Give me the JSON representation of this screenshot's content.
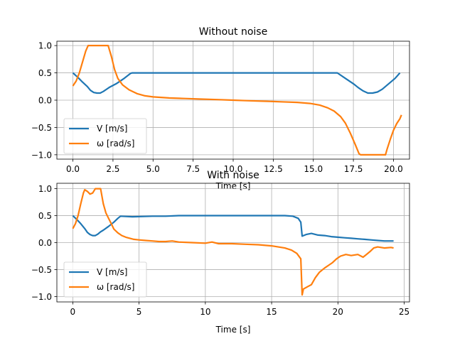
{
  "chart_data": [
    {
      "type": "line",
      "title": "Without noise",
      "xlabel": "Time [s]",
      "ylabel": "",
      "xlim": [
        -1.0,
        21.0
      ],
      "ylim": [
        -1.08,
        1.08
      ],
      "xticks": [
        0.0,
        2.5,
        5.0,
        7.5,
        10.0,
        12.5,
        15.0,
        17.5,
        20.0
      ],
      "xtick_labels": [
        "0.0",
        "2.5",
        "5.0",
        "7.5",
        "10.0",
        "12.5",
        "15.0",
        "17.5",
        "20.0"
      ],
      "yticks": [
        -1.0,
        -0.5,
        0.0,
        0.5,
        1.0
      ],
      "ytick_labels": [
        "−1.0",
        "−0.5",
        "0.0",
        "0.5",
        "1.0"
      ],
      "grid": true,
      "legend": "lower-left",
      "series": [
        {
          "name": "V [m/s]",
          "color": "#1f77b4",
          "points": [
            [
              0.0,
              0.5
            ],
            [
              0.3,
              0.42
            ],
            [
              0.6,
              0.33
            ],
            [
              0.9,
              0.25
            ],
            [
              1.1,
              0.18
            ],
            [
              1.3,
              0.14
            ],
            [
              1.5,
              0.13
            ],
            [
              1.7,
              0.13
            ],
            [
              1.9,
              0.16
            ],
            [
              2.1,
              0.2
            ],
            [
              2.3,
              0.24
            ],
            [
              2.7,
              0.3
            ],
            [
              3.2,
              0.4
            ],
            [
              3.6,
              0.49
            ],
            [
              3.7,
              0.5
            ],
            [
              16.5,
              0.5
            ],
            [
              17.0,
              0.4
            ],
            [
              17.5,
              0.3
            ],
            [
              17.8,
              0.23
            ],
            [
              18.1,
              0.17
            ],
            [
              18.4,
              0.13
            ],
            [
              18.7,
              0.13
            ],
            [
              19.0,
              0.15
            ],
            [
              19.3,
              0.2
            ],
            [
              19.7,
              0.3
            ],
            [
              20.1,
              0.4
            ],
            [
              20.4,
              0.5
            ]
          ]
        },
        {
          "name": "ω [rad/s]",
          "color": "#ff7f0e",
          "points": [
            [
              0.0,
              0.26
            ],
            [
              0.2,
              0.35
            ],
            [
              0.4,
              0.5
            ],
            [
              0.6,
              0.7
            ],
            [
              0.8,
              0.9
            ],
            [
              0.95,
              1.0
            ],
            [
              2.2,
              1.0
            ],
            [
              2.4,
              0.8
            ],
            [
              2.6,
              0.56
            ],
            [
              2.8,
              0.4
            ],
            [
              3.1,
              0.28
            ],
            [
              3.5,
              0.19
            ],
            [
              4.0,
              0.12
            ],
            [
              4.5,
              0.08
            ],
            [
              5.0,
              0.06
            ],
            [
              6.0,
              0.04
            ],
            [
              7.0,
              0.03
            ],
            [
              8.0,
              0.02
            ],
            [
              9.0,
              0.01
            ],
            [
              10.0,
              0.0
            ],
            [
              11.0,
              -0.01
            ],
            [
              12.0,
              -0.02
            ],
            [
              13.0,
              -0.03
            ],
            [
              14.0,
              -0.04
            ],
            [
              14.8,
              -0.06
            ],
            [
              15.4,
              -0.09
            ],
            [
              15.9,
              -0.14
            ],
            [
              16.3,
              -0.2
            ],
            [
              16.7,
              -0.3
            ],
            [
              17.0,
              -0.42
            ],
            [
              17.3,
              -0.6
            ],
            [
              17.6,
              -0.8
            ],
            [
              17.85,
              -0.98
            ],
            [
              17.95,
              -1.0
            ],
            [
              19.5,
              -1.0
            ],
            [
              19.6,
              -0.9
            ],
            [
              19.8,
              -0.72
            ],
            [
              20.0,
              -0.55
            ],
            [
              20.2,
              -0.43
            ],
            [
              20.4,
              -0.34
            ],
            [
              20.5,
              -0.27
            ]
          ]
        }
      ]
    },
    {
      "type": "line",
      "title": "With noise",
      "xlabel": "Time [s]",
      "ylabel": "",
      "xlim": [
        -1.2,
        25.4
      ],
      "ylim": [
        -1.1,
        1.1
      ],
      "xticks": [
        0,
        5,
        10,
        15,
        20,
        25
      ],
      "xtick_labels": [
        "0",
        "5",
        "10",
        "15",
        "20",
        "25"
      ],
      "yticks": [
        -1.0,
        -0.5,
        0.0,
        0.5,
        1.0
      ],
      "ytick_labels": [
        "−1.0",
        "−0.5",
        "0.0",
        "0.5",
        "1.0"
      ],
      "grid": true,
      "legend": "lower-left",
      "series": [
        {
          "name": "V [m/s]",
          "color": "#1f77b4",
          "points": [
            [
              0.0,
              0.5
            ],
            [
              0.3,
              0.43
            ],
            [
              0.6,
              0.35
            ],
            [
              0.9,
              0.26
            ],
            [
              1.1,
              0.19
            ],
            [
              1.3,
              0.15
            ],
            [
              1.5,
              0.13
            ],
            [
              1.7,
              0.13
            ],
            [
              1.9,
              0.16
            ],
            [
              2.1,
              0.2
            ],
            [
              2.3,
              0.23
            ],
            [
              2.7,
              0.3
            ],
            [
              3.1,
              0.38
            ],
            [
              3.4,
              0.45
            ],
            [
              3.6,
              0.49
            ],
            [
              4.5,
              0.48
            ],
            [
              6.0,
              0.49
            ],
            [
              7.0,
              0.49
            ],
            [
              8.0,
              0.5
            ],
            [
              9.0,
              0.5
            ],
            [
              10.0,
              0.5
            ],
            [
              12.0,
              0.5
            ],
            [
              14.0,
              0.5
            ],
            [
              16.0,
              0.5
            ],
            [
              16.6,
              0.49
            ],
            [
              17.0,
              0.45
            ],
            [
              17.2,
              0.38
            ],
            [
              17.3,
              0.12
            ],
            [
              17.6,
              0.15
            ],
            [
              18.0,
              0.17
            ],
            [
              18.5,
              0.14
            ],
            [
              19.0,
              0.13
            ],
            [
              19.5,
              0.11
            ],
            [
              20.0,
              0.1
            ],
            [
              20.5,
              0.09
            ],
            [
              21.0,
              0.08
            ],
            [
              21.5,
              0.07
            ],
            [
              22.0,
              0.06
            ],
            [
              22.5,
              0.05
            ],
            [
              23.0,
              0.04
            ],
            [
              23.5,
              0.03
            ],
            [
              24.2,
              0.03
            ]
          ]
        },
        {
          "name": "ω [rad/s]",
          "color": "#ff7f0e",
          "points": [
            [
              0.0,
              0.26
            ],
            [
              0.2,
              0.35
            ],
            [
              0.4,
              0.5
            ],
            [
              0.6,
              0.72
            ],
            [
              0.8,
              0.92
            ],
            [
              0.9,
              0.98
            ],
            [
              1.1,
              0.95
            ],
            [
              1.3,
              0.9
            ],
            [
              1.5,
              0.92
            ],
            [
              1.7,
              1.0
            ],
            [
              2.1,
              1.0
            ],
            [
              2.3,
              0.72
            ],
            [
              2.5,
              0.55
            ],
            [
              2.7,
              0.45
            ],
            [
              2.9,
              0.35
            ],
            [
              3.1,
              0.25
            ],
            [
              3.4,
              0.18
            ],
            [
              3.7,
              0.13
            ],
            [
              4.0,
              0.1
            ],
            [
              4.3,
              0.08
            ],
            [
              4.6,
              0.06
            ],
            [
              5.0,
              0.05
            ],
            [
              5.5,
              0.04
            ],
            [
              6.0,
              0.03
            ],
            [
              6.5,
              0.02
            ],
            [
              7.0,
              0.02
            ],
            [
              7.5,
              0.03
            ],
            [
              8.0,
              0.01
            ],
            [
              9.0,
              0.0
            ],
            [
              10.0,
              -0.01
            ],
            [
              10.5,
              0.01
            ],
            [
              11.0,
              -0.02
            ],
            [
              12.0,
              -0.02
            ],
            [
              13.0,
              -0.03
            ],
            [
              14.0,
              -0.04
            ],
            [
              15.0,
              -0.06
            ],
            [
              16.0,
              -0.1
            ],
            [
              16.5,
              -0.14
            ],
            [
              16.9,
              -0.2
            ],
            [
              17.2,
              -0.3
            ],
            [
              17.3,
              -0.97
            ],
            [
              17.4,
              -0.86
            ],
            [
              17.7,
              -0.82
            ],
            [
              18.0,
              -0.78
            ],
            [
              18.3,
              -0.65
            ],
            [
              18.6,
              -0.55
            ],
            [
              19.0,
              -0.47
            ],
            [
              19.3,
              -0.42
            ],
            [
              19.6,
              -0.37
            ],
            [
              19.9,
              -0.3
            ],
            [
              20.2,
              -0.25
            ],
            [
              20.6,
              -0.22
            ],
            [
              21.0,
              -0.24
            ],
            [
              21.5,
              -0.22
            ],
            [
              21.9,
              -0.27
            ],
            [
              22.1,
              -0.23
            ],
            [
              22.4,
              -0.17
            ],
            [
              22.7,
              -0.1
            ],
            [
              23.0,
              -0.08
            ],
            [
              23.5,
              -0.1
            ],
            [
              24.0,
              -0.09
            ],
            [
              24.2,
              -0.1
            ]
          ]
        }
      ]
    }
  ]
}
